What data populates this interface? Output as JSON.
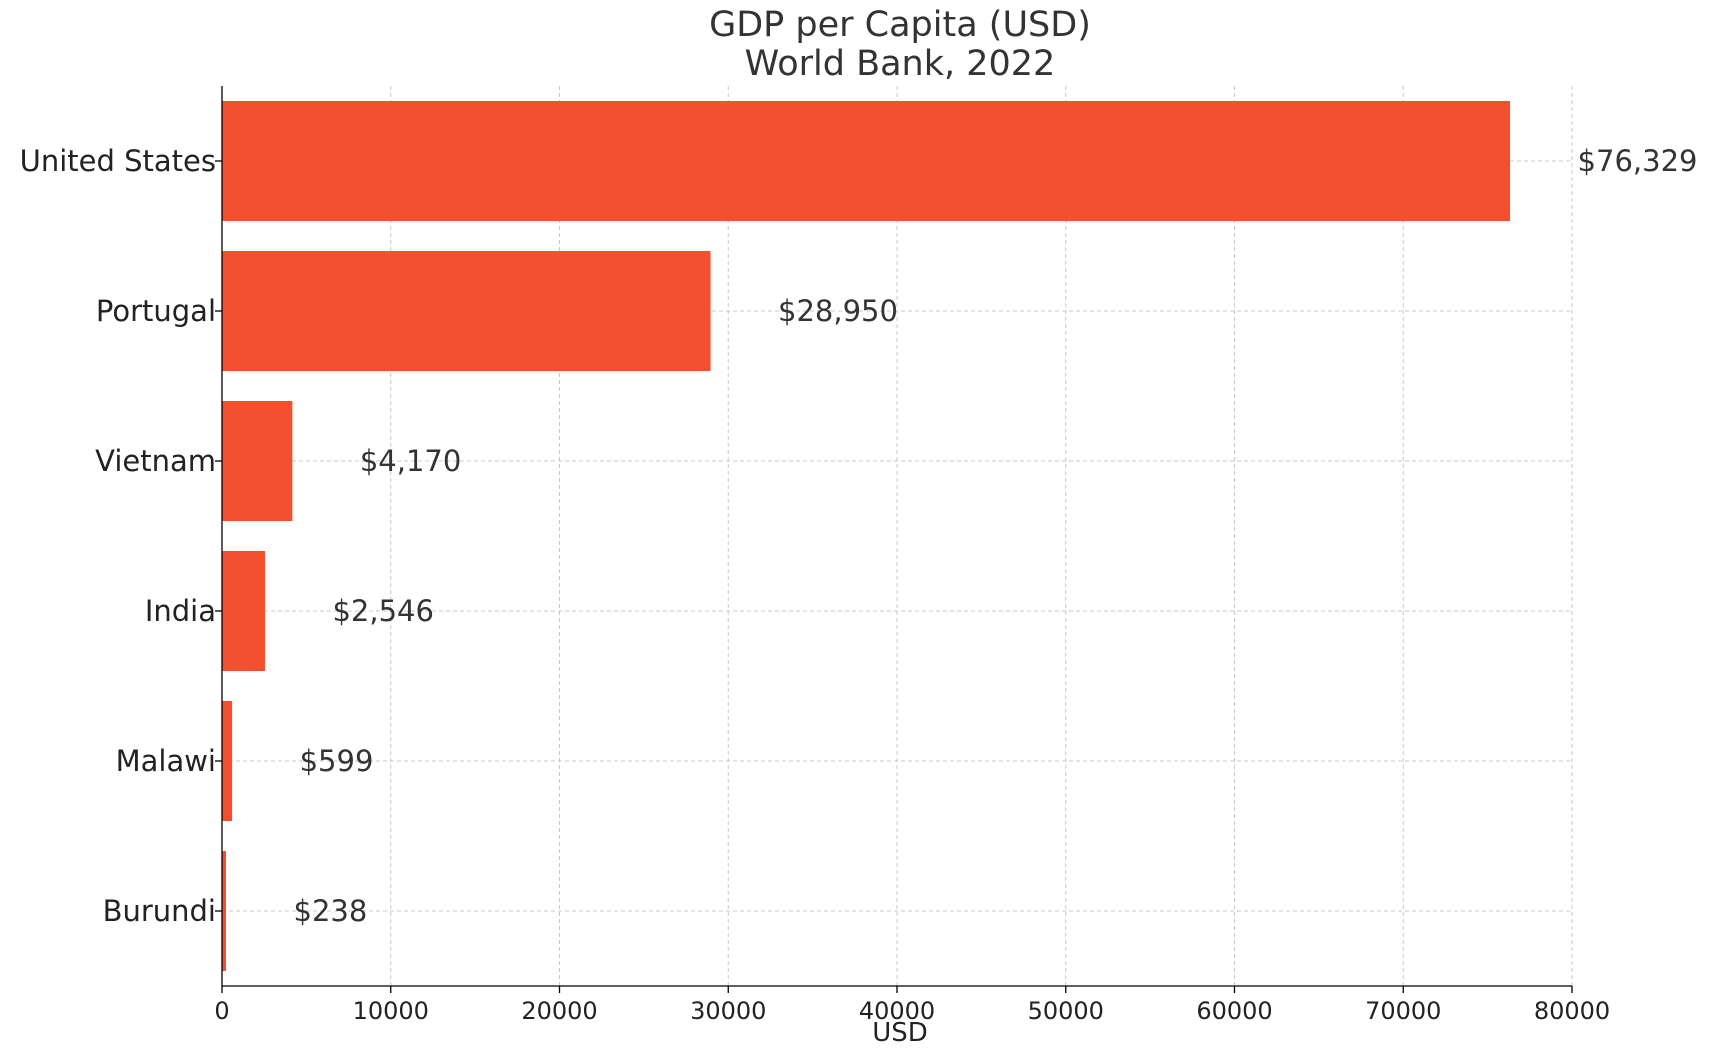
{
  "chart_data": {
    "type": "bar",
    "orientation": "horizontal",
    "title": "GDP per Capita (USD)",
    "subtitle": "World Bank, 2022",
    "xlabel": "USD",
    "ylabel": "",
    "xlim": [
      0,
      80000
    ],
    "xticks": [
      0,
      10000,
      20000,
      30000,
      40000,
      50000,
      60000,
      70000,
      80000
    ],
    "xtick_labels": [
      "0",
      "10000",
      "20000",
      "30000",
      "40000",
      "50000",
      "60000",
      "70000",
      "80000"
    ],
    "grid": true,
    "bar_color": "#f44f2f",
    "categories": [
      "United States",
      "Portugal",
      "Vietnam",
      "India",
      "Malawi",
      "Burundi"
    ],
    "values": [
      76329,
      28950,
      4170,
      2546,
      599,
      238
    ],
    "value_labels": [
      "$76,329",
      "$28,950",
      "$4,170",
      "$2,546",
      "$599",
      "$238"
    ]
  }
}
